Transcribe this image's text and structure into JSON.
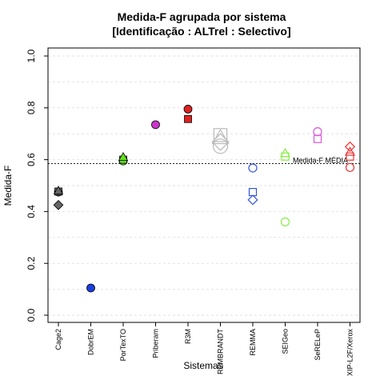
{
  "chart_data": {
    "type": "scatter",
    "title_line1": "Medida-F agrupada por sistema",
    "title_line2": "[Identificação : ALTrel : Selectivo]",
    "xlabel": "Sistemas",
    "ylabel": "Medida-F",
    "ylim": [
      0,
      1
    ],
    "yticks": [
      "0.0",
      "0.2",
      "0.4",
      "0.6",
      "0.8",
      "1.0"
    ],
    "grid": "horizontal-dashed",
    "categories": [
      "Cage2",
      "DobrEM",
      "PorTexTO",
      "Priberam",
      "R3M",
      "REMBRANDT",
      "REMMA",
      "SEIGeo",
      "SeRELeP",
      "XIP-L2F/Xerox"
    ],
    "mean_line": {
      "value": 0.585,
      "label": "Medida-F MÉDIA"
    },
    "colors": {
      "Cage2": "#666666",
      "DobrEM": "#1a3fe0",
      "PorTexTO": "#66dd22",
      "Priberam": "#cc33cc",
      "R3M": "#dd2222",
      "REMBRANDT": "#bbbbbb",
      "REMMA": "#3355dd",
      "SEIGeo": "#88ee44",
      "SeRELeP": "#dd55dd",
      "XIP-L2F/Xerox": "#ee3333"
    },
    "points": [
      {
        "category": "Cage2",
        "shape": "circle",
        "filled": true,
        "y": 0.475
      },
      {
        "category": "Cage2",
        "shape": "square",
        "filled": true,
        "y": 0.477
      },
      {
        "category": "Cage2",
        "shape": "triangle",
        "filled": true,
        "y": 0.48
      },
      {
        "category": "Cage2",
        "shape": "diamond",
        "filled": true,
        "y": 0.425
      },
      {
        "category": "DobrEM",
        "shape": "circle",
        "filled": true,
        "y": 0.105
      },
      {
        "category": "PorTexTO",
        "shape": "circle",
        "filled": true,
        "y": 0.595
      },
      {
        "category": "PorTexTO",
        "shape": "square",
        "filled": true,
        "y": 0.6
      },
      {
        "category": "PorTexTO",
        "shape": "triangle",
        "filled": true,
        "y": 0.61
      },
      {
        "category": "Priberam",
        "shape": "circle",
        "filled": true,
        "y": 0.735
      },
      {
        "category": "R3M",
        "shape": "circle",
        "filled": true,
        "y": 0.795
      },
      {
        "category": "R3M",
        "shape": "square",
        "filled": true,
        "y": 0.757
      },
      {
        "category": "REMBRANDT",
        "shape": "circle",
        "filled": false,
        "y": 0.652,
        "large": true
      },
      {
        "category": "REMBRANDT",
        "shape": "square",
        "filled": false,
        "y": 0.695,
        "large": true
      },
      {
        "category": "REMBRANDT",
        "shape": "triangle",
        "filled": false,
        "y": 0.685,
        "large": true
      },
      {
        "category": "REMBRANDT",
        "shape": "diamond",
        "filled": false,
        "y": 0.668,
        "large": true
      },
      {
        "category": "REMMA",
        "shape": "circle",
        "filled": false,
        "y": 0.568
      },
      {
        "category": "REMMA",
        "shape": "square",
        "filled": false,
        "y": 0.475
      },
      {
        "category": "REMMA",
        "shape": "diamond",
        "filled": false,
        "y": 0.445
      },
      {
        "category": "SEIGeo",
        "shape": "circle",
        "filled": false,
        "y": 0.36
      },
      {
        "category": "SEIGeo",
        "shape": "square",
        "filled": false,
        "y": 0.612
      },
      {
        "category": "SEIGeo",
        "shape": "triangle",
        "filled": false,
        "y": 0.625
      },
      {
        "category": "SeRELeP",
        "shape": "circle",
        "filled": false,
        "y": 0.708
      },
      {
        "category": "SeRELeP",
        "shape": "square",
        "filled": false,
        "y": 0.68
      },
      {
        "category": "XIP-L2F/Xerox",
        "shape": "circle",
        "filled": false,
        "y": 0.57
      },
      {
        "category": "XIP-L2F/Xerox",
        "shape": "square",
        "filled": false,
        "y": 0.612
      },
      {
        "category": "XIP-L2F/Xerox",
        "shape": "triangle",
        "filled": false,
        "y": 0.63
      },
      {
        "category": "XIP-L2F/Xerox",
        "shape": "diamond",
        "filled": false,
        "y": 0.65
      }
    ]
  }
}
